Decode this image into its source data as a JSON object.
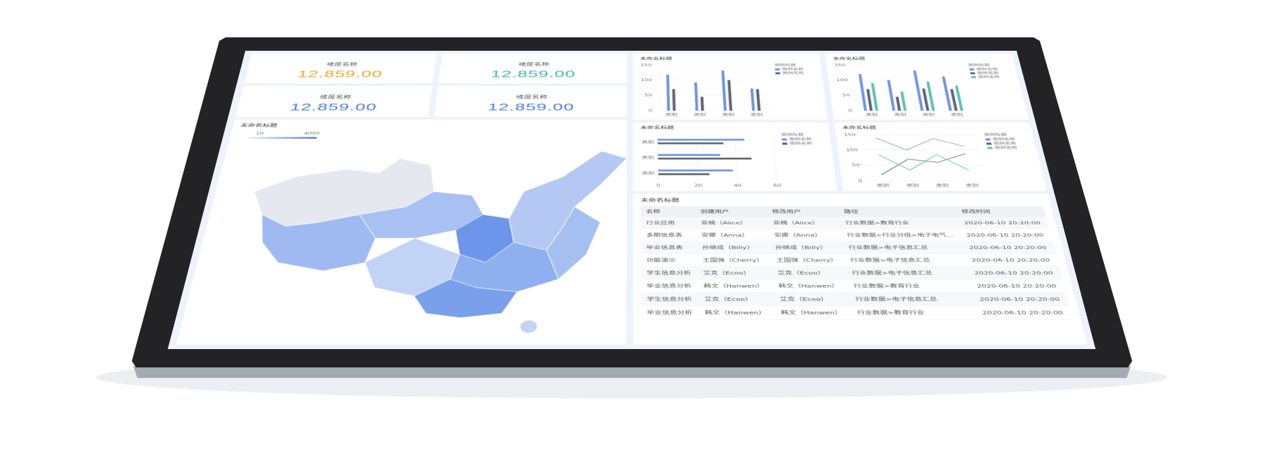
{
  "kpis": [
    {
      "label": "维度名称",
      "value": "12.859.00",
      "color": "#f5a623"
    },
    {
      "label": "维度名称",
      "value": "12.859.00",
      "color": "#3fb8af"
    },
    {
      "label": "维度名称",
      "value": "12.859.00",
      "color": "#4a7fe0"
    },
    {
      "label": "维度名称",
      "value": "12.859.00",
      "color": "#4a7fe0"
    }
  ],
  "map": {
    "title": "未命名标题",
    "range_min": "10",
    "range_max": "4000"
  },
  "chart_data": [
    {
      "type": "bar",
      "title": "未命名标题",
      "categories": [
        "类别",
        "类别",
        "类别",
        "类别"
      ],
      "series": [
        {
          "name": "图例名称",
          "color": "#6f93e8",
          "values": [
            118,
            92,
            132,
            72
          ]
        },
        {
          "name": "图例名称",
          "color": "#5b6477",
          "values": [
            70,
            45,
            100,
            70
          ]
        }
      ],
      "ylim": [
        0,
        150
      ],
      "yticks": [
        0,
        50,
        100,
        150
      ],
      "grid": true,
      "legend_title": "图例标题",
      "legend": "top-right"
    },
    {
      "type": "bar",
      "title": "未命名标题",
      "categories": [
        "类别",
        "类别",
        "类别",
        "类别"
      ],
      "series": [
        {
          "name": "图例名称",
          "color": "#6f93e8",
          "values": [
            120,
            100,
            132,
            112
          ]
        },
        {
          "name": "图例名称",
          "color": "#5b6477",
          "values": [
            70,
            45,
            72,
            70
          ]
        },
        {
          "name": "图例名称",
          "color": "#5cc2b0",
          "values": [
            90,
            62,
            95,
            82
          ]
        }
      ],
      "ylim": [
        0,
        150
      ],
      "yticks": [
        0,
        50,
        100,
        150
      ],
      "grid": true,
      "legend_title": "图例标题",
      "legend": "top-right"
    },
    {
      "type": "hbar",
      "title": "未命名标题",
      "categories": [
        "类别",
        "类别",
        "类别"
      ],
      "series": [
        {
          "name": "图例名称",
          "color": "#6f93e8",
          "values": [
            45,
            32,
            38
          ]
        },
        {
          "name": "图例名称",
          "color": "#5b6477",
          "values": [
            34,
            48,
            26
          ]
        }
      ],
      "xlim": [
        0,
        60
      ],
      "xticks": [
        0,
        20,
        40,
        60
      ],
      "grid": true,
      "legend_title": "图例标题",
      "legend": "top-right"
    },
    {
      "type": "line",
      "title": "未命名标题",
      "categories": [
        "类别",
        "类别",
        "类别",
        "类别"
      ],
      "series": [
        {
          "name": "图例名称",
          "color": "#6f93e8",
          "values": [
            140,
            100,
            138,
            112
          ]
        },
        {
          "name": "图例名称",
          "color": "#5b6477",
          "values": [
            20,
            70,
            60,
            88
          ]
        },
        {
          "name": "图例名称",
          "color": "#5cc2b0",
          "values": [
            85,
            35,
            85,
            35
          ]
        }
      ],
      "ylim": [
        0,
        150
      ],
      "yticks": [
        0,
        50,
        100,
        150
      ],
      "grid": true,
      "legend_title": "图例标题",
      "legend": "top-right"
    }
  ],
  "table": {
    "title": "未命名标题",
    "columns": [
      "名称",
      "创建用户",
      "修改用户",
      "路径",
      "修改时间"
    ],
    "rows": [
      [
        "行业应用",
        "亚楠（Alice）",
        "亚楠（Alice）",
        "行业数据>教育行业",
        "2020-06-10 20:20:00"
      ],
      [
        "多期信息表",
        "安娜（Anna）",
        "安娜（Anna）",
        "行业数据>行业分组>电子电气...",
        "2020-06-10 20:20:00"
      ],
      [
        "毕业信息表",
        "孙继成（Billy）",
        "孙继成（Billy）",
        "行业数据>电子信息汇总",
        "2020-06-10 20:20:00"
      ],
      [
        "功能演示",
        "王国强（Cherry）",
        "王国强（Cherry）",
        "行业数据>电子信息汇总",
        "2020-06-10 20:20:00"
      ],
      [
        "学生信息分析",
        "艾克（Ecoo）",
        "艾克（Ecoo）",
        "行业数据>电子信息汇总",
        "2020-06-10 20:20:00"
      ],
      [
        "毕业信息分析",
        "韩文（Hanwen）",
        "韩文（Hanwen）",
        "行业数据>教育行业",
        "2020-06-10 20:20:00"
      ],
      [
        "学生信息分析",
        "艾克（Ecoo）",
        "艾克（Ecoo）",
        "行业数据>电子信息汇总",
        "2020-06-10 20:20:00"
      ],
      [
        "毕业信息分析",
        "韩文（Hanwen）",
        "韩文（Hanwen）",
        "行业数据>教育行业",
        "2020-06-10 20:20:00"
      ]
    ]
  }
}
